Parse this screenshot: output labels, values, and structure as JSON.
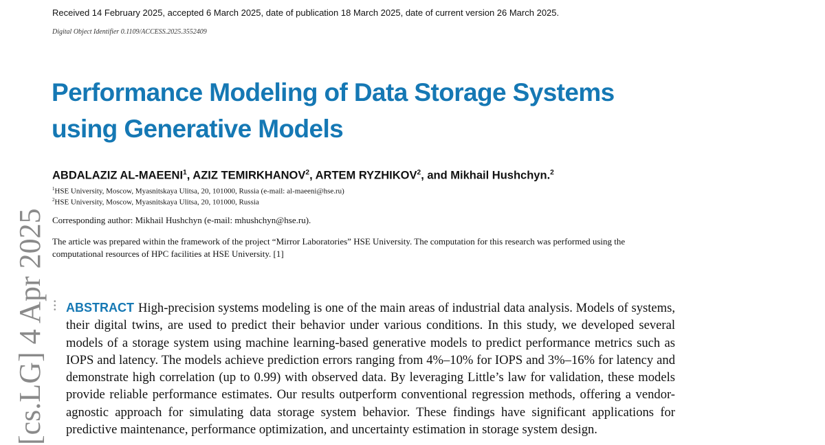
{
  "header": {
    "received": "Received 14 February 2025, accepted 6 March 2025, date of publication 18 March 2025, date of current version 26 March 2025.",
    "doi": "Digital Object Identifier 0.1109/ACCESS.2025.3552409"
  },
  "title_lines": [
    "Performance Modeling of Data Storage Systems",
    "using Generative Models"
  ],
  "authors": {
    "a1": "ABDALAZIZ AL-MAEENI",
    "a1_sup": "1",
    "a2": ", AZIZ TEMIRKHANOV",
    "a2_sup": "2",
    "a3": ", ARTEM RYZHIKOV",
    "a3_sup": "2",
    "a4": ", and Mikhail Hushchyn.",
    "a4_sup": "2"
  },
  "affiliations": [
    {
      "mark": "1",
      "text": "HSE University, Moscow, Myasnitskaya Ulitsa, 20, 101000, Russia (e-mail: al-maeeni@hse.ru)"
    },
    {
      "mark": "2",
      "text": "HSE University, Moscow, Myasnitskaya Ulitsa, 20, 101000, Russia"
    }
  ],
  "corresponding": "Corresponding author: Mikhail Hushchyn (e-mail: mhushchyn@hse.ru).",
  "note": "The article was prepared within the framework of the project “Mirror Laboratories” HSE University. The computation for this research was performed using the computational resources of HPC facilities at HSE University.  [1]",
  "abstract": {
    "label": "ABSTRACT",
    "text": "High-precision systems modeling is one of the main areas of industrial data analysis. Models of systems, their digital twins, are used to predict their behavior under various conditions. In this study, we developed several models of a storage system using machine learning-based generative models to predict performance metrics such as IOPS and latency. The models achieve prediction errors ranging from 4%–10% for IOPS and 3%–16% for latency and demonstrate high correlation (up to 0.99) with observed data. By leveraging Little’s law for validation, these models provide reliable performance estimates. Our results outperform conventional regression methods, offering a vendor-agnostic approach for simulating data storage system behavior. These findings have significant applications for predictive maintenance, performance optimization, and uncertainty estimation in storage system design."
  },
  "arxiv_stamp": "[cs.LG]  4 Apr 2025",
  "colors": {
    "accent": "#1578b4",
    "stamp": "#8a8a8a"
  }
}
